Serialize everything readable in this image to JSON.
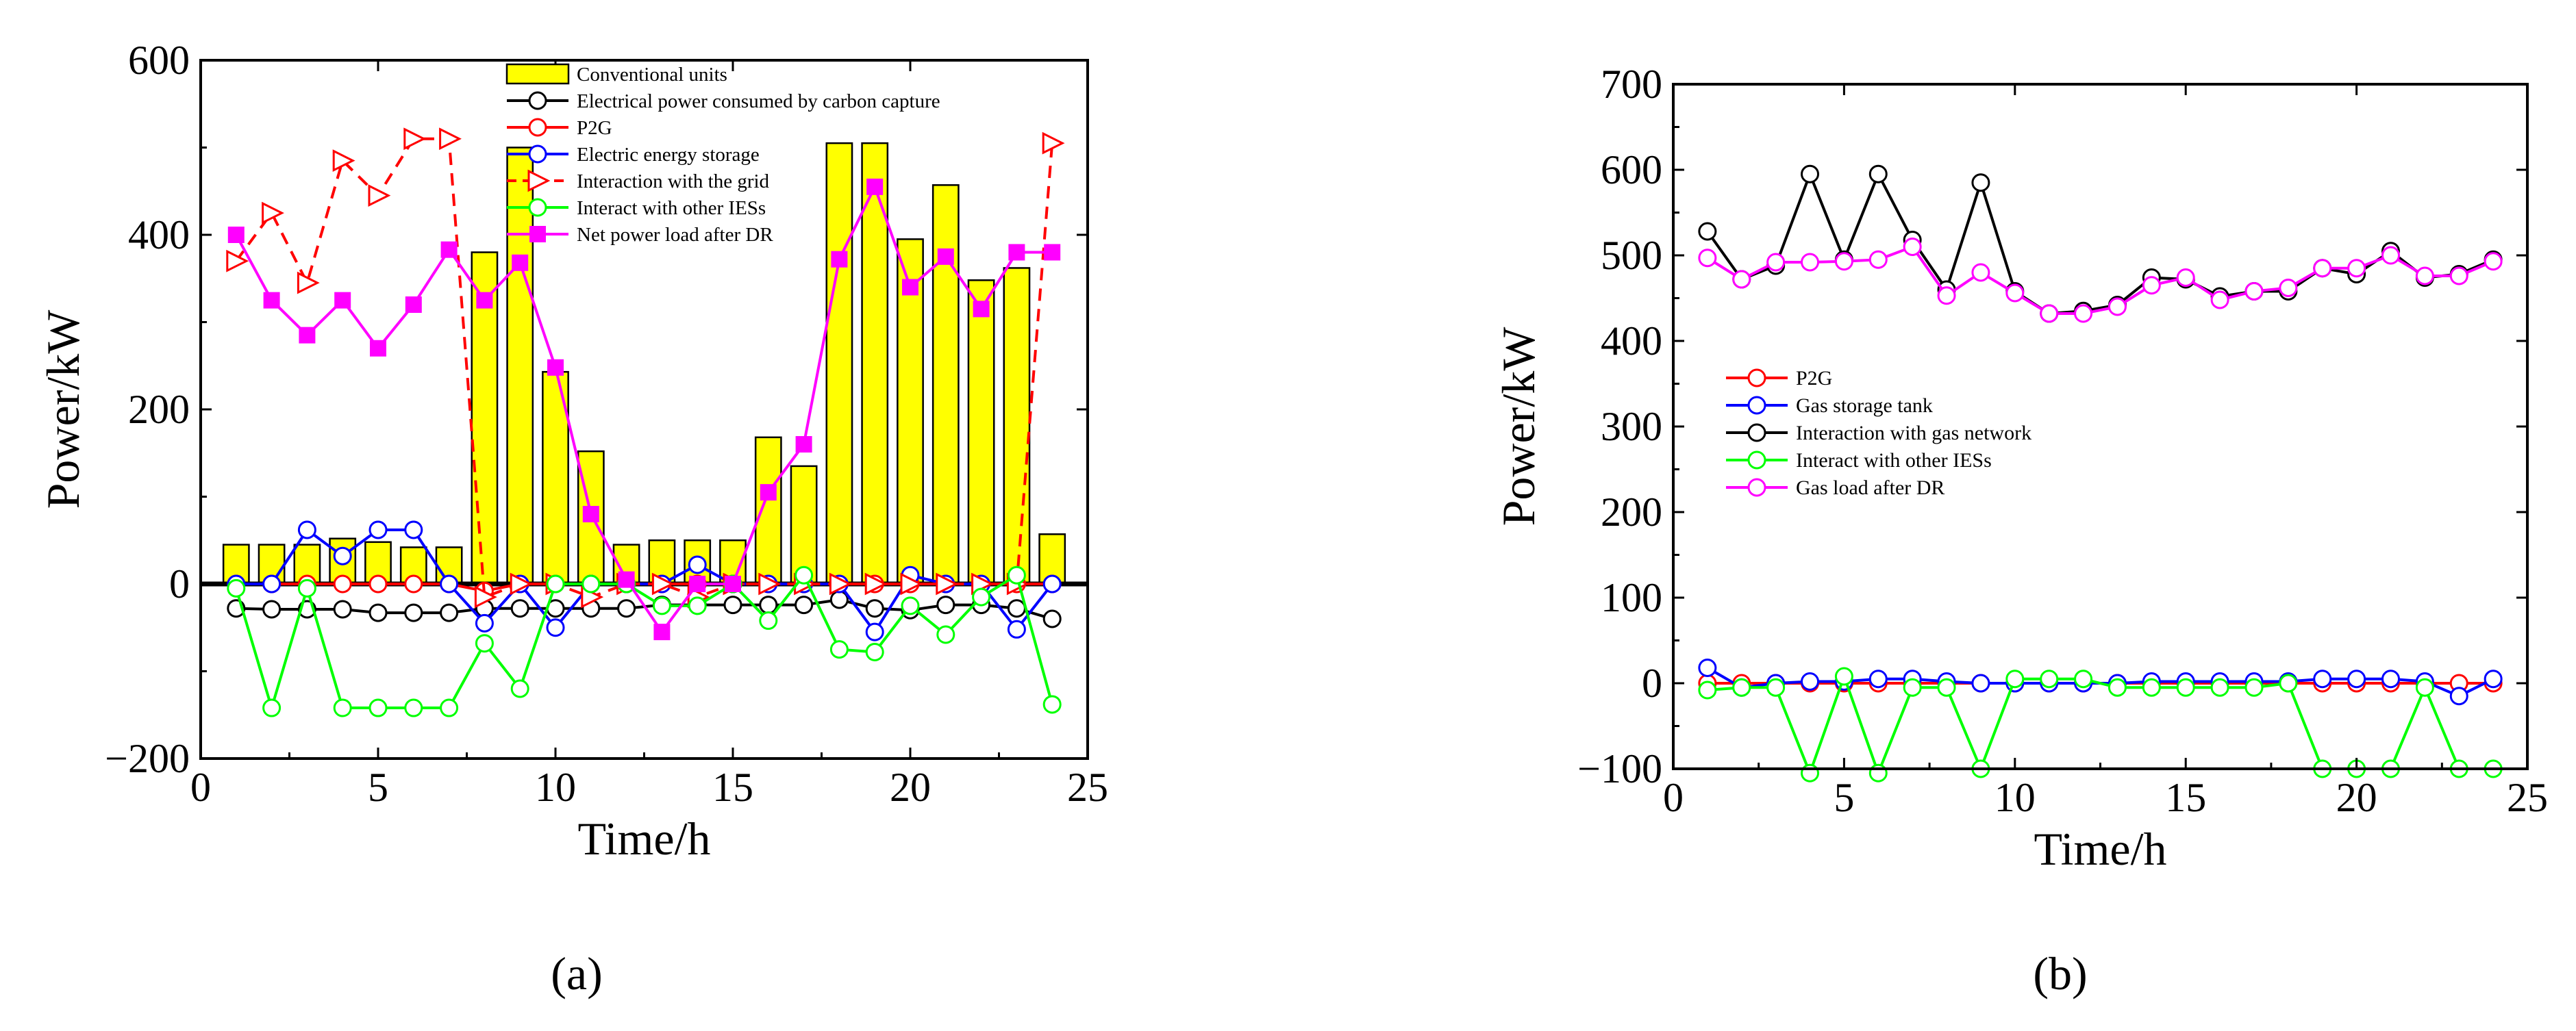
{
  "panel_labels": [
    "(a)",
    "(b)"
  ],
  "chart_data": [
    {
      "type": "bar+line",
      "label": "(a)",
      "xlabel": "Time/h",
      "ylabel": "Power/kW",
      "xlim": [
        0,
        25
      ],
      "ylim": [
        -200,
        600
      ],
      "xticks": [
        0,
        5,
        10,
        15,
        20,
        25
      ],
      "yticks": [
        -200,
        0,
        200,
        400,
        600
      ],
      "x": [
        1,
        2,
        3,
        4,
        5,
        6,
        7,
        8,
        9,
        10,
        11,
        12,
        13,
        14,
        15,
        16,
        17,
        18,
        19,
        20,
        21,
        22,
        23,
        24
      ],
      "legend": [
        "Conventional units",
        "Electrical power consumed by carbon capture",
        "P2G",
        "Electric energy storage",
        "Interaction with the grid",
        "Interact with other IESs",
        "Net power load after DR"
      ],
      "series": [
        {
          "name": "Conventional units",
          "kind": "bar",
          "color": "#ffff00",
          "values": [
            45,
            45,
            45,
            52,
            48,
            42,
            42,
            380,
            500,
            243,
            152,
            45,
            50,
            50,
            50,
            168,
            135,
            505,
            505,
            395,
            457,
            348,
            362,
            57
          ]
        },
        {
          "name": "Electrical power consumed by carbon capture",
          "kind": "line",
          "color": "#000000",
          "marker": "circle",
          "values": [
            -28,
            -29,
            -29,
            -29,
            -33,
            -33,
            -33,
            -28,
            -28,
            -28,
            -28,
            -28,
            -24,
            -24,
            -24,
            -24,
            -24,
            -18,
            -28,
            -30,
            -24,
            -24,
            -28,
            -40
          ]
        },
        {
          "name": "P2G",
          "kind": "line",
          "color": "#ff0000",
          "marker": "circle",
          "values": [
            0,
            0,
            0,
            0,
            0,
            0,
            0,
            -8,
            0,
            0,
            0,
            0,
            0,
            0,
            0,
            0,
            0,
            0,
            0,
            0,
            0,
            0,
            0,
            0
          ]
        },
        {
          "name": "Electric energy storage",
          "kind": "line",
          "color": "#0000ff",
          "marker": "circle",
          "values": [
            0,
            0,
            62,
            32,
            62,
            62,
            0,
            -45,
            0,
            -50,
            0,
            0,
            0,
            22,
            0,
            0,
            0,
            0,
            -55,
            10,
            0,
            0,
            -52,
            0
          ]
        },
        {
          "name": "Interaction with the grid",
          "kind": "line",
          "color": "#ff0000",
          "marker": "triangle-right",
          "dashed": true,
          "values": [
            370,
            425,
            345,
            485,
            445,
            510,
            510,
            -15,
            0,
            0,
            -15,
            0,
            0,
            -15,
            0,
            0,
            0,
            0,
            0,
            0,
            0,
            0,
            0,
            505
          ]
        },
        {
          "name": "Interact with other IESs",
          "kind": "line",
          "color": "#00ff00",
          "marker": "circle",
          "values": [
            -5,
            -142,
            -5,
            -142,
            -142,
            -142,
            -142,
            -68,
            -120,
            0,
            0,
            0,
            -25,
            -25,
            0,
            -42,
            10,
            -75,
            -78,
            -25,
            -58,
            -15,
            10,
            -138
          ]
        },
        {
          "name": "Net power load after DR",
          "kind": "line",
          "color": "#ff00ff",
          "marker": "square",
          "values": [
            400,
            325,
            285,
            325,
            270,
            320,
            383,
            325,
            368,
            248,
            80,
            5,
            -55,
            0,
            0,
            105,
            160,
            372,
            455,
            340,
            375,
            315,
            380,
            380
          ]
        }
      ]
    },
    {
      "type": "line",
      "label": "(b)",
      "xlabel": "Time/h",
      "ylabel": "Power/kW",
      "xlim": [
        0,
        25
      ],
      "ylim": [
        -100,
        700
      ],
      "xticks": [
        0,
        5,
        10,
        15,
        20,
        25
      ],
      "yticks": [
        -100,
        0,
        100,
        200,
        300,
        400,
        500,
        600,
        700
      ],
      "x": [
        1,
        2,
        3,
        4,
        5,
        6,
        7,
        8,
        9,
        10,
        11,
        12,
        13,
        14,
        15,
        16,
        17,
        18,
        19,
        20,
        21,
        22,
        23,
        24
      ],
      "legend": [
        "P2G",
        "Gas storage tank",
        "Interaction with gas network",
        "Interact with other IESs",
        "Gas load after DR"
      ],
      "series": [
        {
          "name": "P2G",
          "kind": "line",
          "color": "#ff0000",
          "marker": "circle",
          "values": [
            0,
            0,
            0,
            0,
            0,
            0,
            0,
            0,
            0,
            0,
            0,
            0,
            0,
            0,
            0,
            0,
            0,
            0,
            0,
            0,
            0,
            0,
            0,
            0
          ]
        },
        {
          "name": "Gas storage tank",
          "kind": "line",
          "color": "#0000ff",
          "marker": "circle",
          "values": [
            18,
            -5,
            0,
            2,
            2,
            5,
            5,
            2,
            0,
            0,
            0,
            0,
            0,
            2,
            2,
            2,
            2,
            2,
            5,
            5,
            5,
            2,
            -15,
            5
          ]
        },
        {
          "name": "Interaction with gas network",
          "kind": "line",
          "color": "#000000",
          "marker": "circle",
          "values": [
            528,
            472,
            488,
            595,
            495,
            595,
            518,
            460,
            585,
            458,
            432,
            435,
            442,
            474,
            472,
            452,
            458,
            458,
            485,
            478,
            505,
            474,
            478,
            495
          ]
        },
        {
          "name": "Interact with other IESs",
          "kind": "line",
          "color": "#00ff00",
          "marker": "circle",
          "values": [
            -8,
            -5,
            -5,
            -105,
            8,
            -105,
            -5,
            -5,
            -100,
            5,
            5,
            5,
            -5,
            -5,
            -5,
            -5,
            -5,
            0,
            -100,
            -100,
            -100,
            -5,
            -100,
            -100
          ]
        },
        {
          "name": "Gas load after DR",
          "kind": "line",
          "color": "#ff00ff",
          "marker": "circle",
          "values": [
            497,
            472,
            492,
            492,
            493,
            495,
            510,
            453,
            480,
            456,
            432,
            432,
            440,
            465,
            474,
            448,
            458,
            462,
            485,
            485,
            500,
            476,
            476,
            493
          ]
        }
      ]
    }
  ]
}
